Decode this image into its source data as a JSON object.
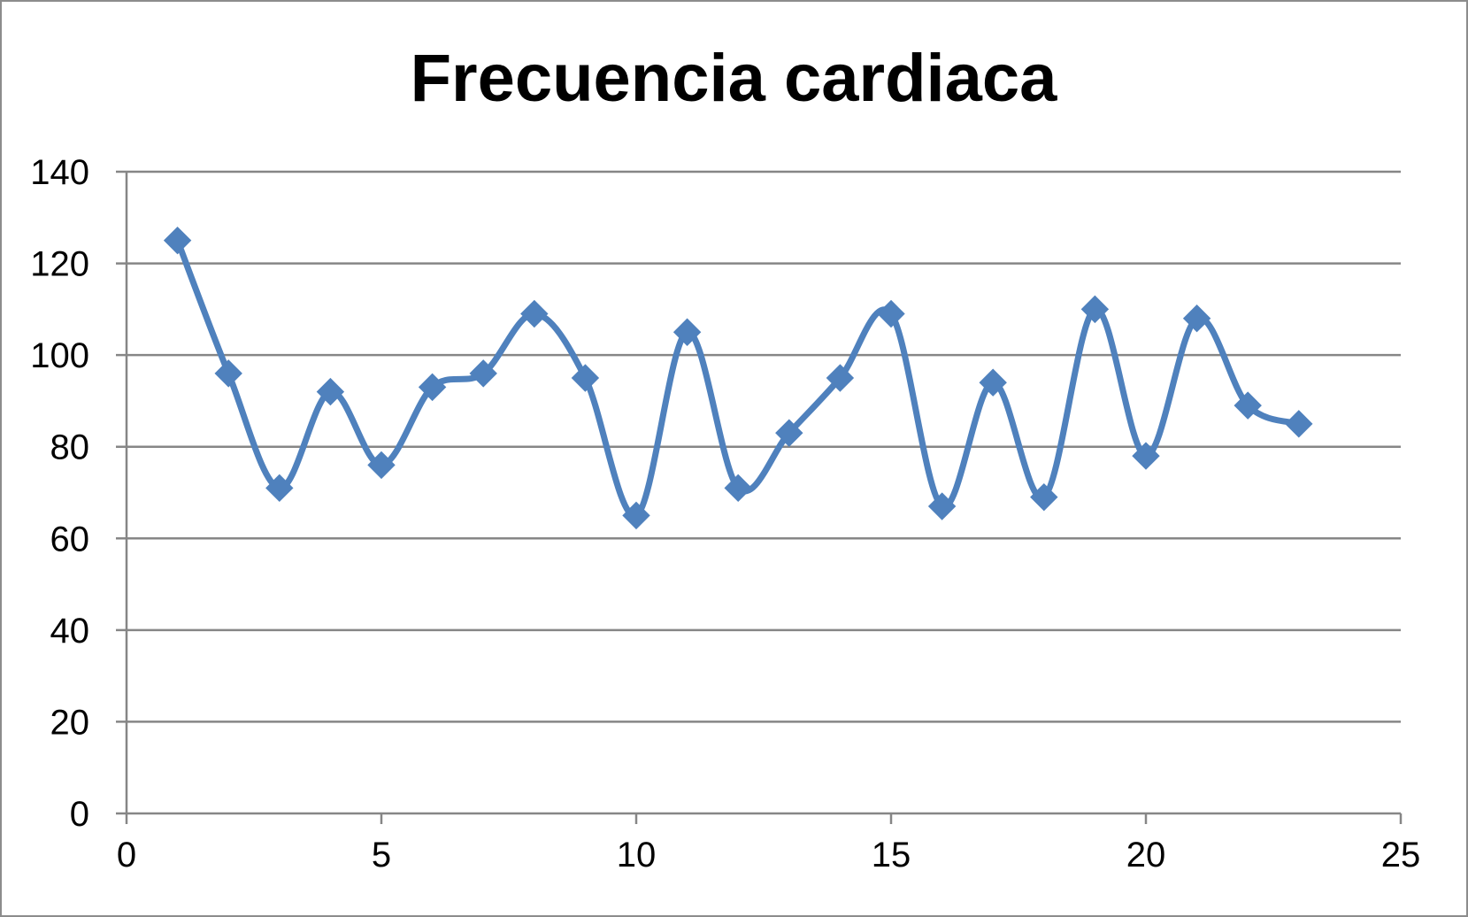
{
  "chart_data": {
    "type": "line",
    "title": "Frecuencia cardiaca",
    "xlabel": "",
    "ylabel": "",
    "xlim": [
      0,
      25
    ],
    "ylim": [
      0,
      140
    ],
    "xticks": [
      "0",
      "5",
      "10",
      "15",
      "20",
      "25"
    ],
    "yticks": [
      "0",
      "20",
      "40",
      "60",
      "80",
      "100",
      "120",
      "140"
    ],
    "grid": "horizontal",
    "legend": "none",
    "smooth": true,
    "marker": "diamond",
    "series": [
      {
        "color": "#4F81BD",
        "x": [
          1,
          2,
          3,
          4,
          5,
          6,
          7,
          8,
          9,
          10,
          11,
          12,
          13,
          14,
          15,
          16,
          17,
          18,
          19,
          20,
          21,
          22,
          23
        ],
        "y": [
          125,
          96,
          71,
          92,
          76,
          93,
          96,
          109,
          95,
          65,
          105,
          71,
          83,
          95,
          109,
          67,
          94,
          69,
          110,
          78,
          108,
          89,
          85
        ]
      }
    ]
  }
}
